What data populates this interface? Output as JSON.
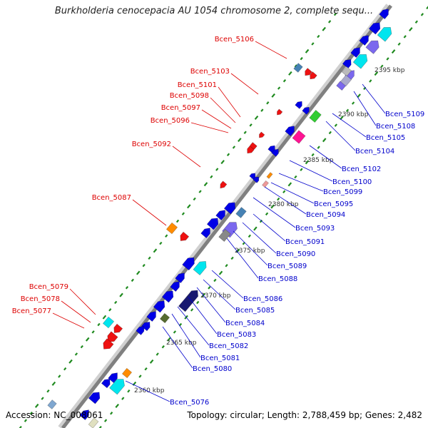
{
  "title": "Burkholderia cenocepacia AU 1054 chromosome 2, complete sequ...",
  "accession_text": "Accession: NC_008061",
  "topology_text": "Topology: circular; Length: 2,788,459 bp; Genes: 2,482",
  "colors": {
    "backbone": "#808080",
    "forward_gene": "#0000e6",
    "cyan_gene": "#00e5ee",
    "slate_gene": "#7b68ee",
    "red_gene": "#ee1111",
    "orange_gene": "#ff8c00",
    "magenta_gene": "#ff1493",
    "green_gene": "#32cd32",
    "steelblue_gene": "#4682b4",
    "dark_green_gene": "#556b2f",
    "navy_gene": "#191970",
    "gc_dash": "#1f8a1f",
    "red_label": "#dd0000",
    "blue_label": "#0000cc"
  },
  "kbp_ticks": [
    "2360 kbp",
    "2365 kbp",
    "2370 kbp",
    "2375 kbp",
    "2380 kbp",
    "2385 kbp",
    "2390 kbp",
    "2395 kbp"
  ],
  "left_labels": [
    "Bcen_5106",
    "Bcen_5103",
    "Bcen_5101",
    "Bcen_5098",
    "Bcen_5097",
    "Bcen_5096",
    "Bcen_5092",
    "Bcen_5087",
    "Bcen_5079",
    "Bcen_5078",
    "Bcen_5077"
  ],
  "right_labels": [
    "Bcen_5109",
    "Bcen_5108",
    "Bcen_5105",
    "Bcen_5104",
    "Bcen_5102",
    "Bcen_5100",
    "Bcen_5099",
    "Bcen_5095",
    "Bcen_5094",
    "Bcen_5093",
    "Bcen_5091",
    "Bcen_5090",
    "Bcen_5089",
    "Bcen_5088",
    "Bcen_5086",
    "Bcen_5085",
    "Bcen_5084",
    "Bcen_5083",
    "Bcen_5082",
    "Bcen_5081",
    "Bcen_5080",
    "Bcen_5076"
  ]
}
